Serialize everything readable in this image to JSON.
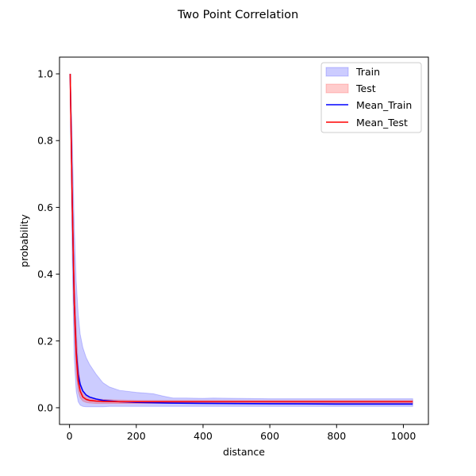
{
  "chart_data": {
    "type": "line",
    "title": "Two Point Correlation",
    "xlabel": "distance",
    "ylabel": "probability",
    "xlim": [
      -30,
      1075
    ],
    "ylim": [
      -0.05,
      1.05
    ],
    "xticks": [
      0,
      200,
      400,
      600,
      800,
      1000
    ],
    "yticks": [
      0.0,
      0.2,
      0.4,
      0.6,
      0.8,
      1.0
    ],
    "xtick_labels": [
      "0",
      "200",
      "400",
      "600",
      "800",
      "1000"
    ],
    "ytick_labels": [
      "0.0",
      "0.2",
      "0.4",
      "0.6",
      "0.8",
      "1.0"
    ],
    "grid": false,
    "legend_position": "top-right",
    "bands": [
      {
        "name": "Train",
        "color": "#0000ff",
        "alpha": 0.2,
        "x": [
          2,
          8,
          14,
          20,
          26,
          32,
          40,
          50,
          60,
          80,
          100,
          120,
          150,
          200,
          250,
          280,
          310,
          350,
          400,
          430,
          500,
          600,
          700,
          800,
          900,
          1000,
          1028
        ],
        "upper": [
          1.0,
          0.82,
          0.55,
          0.38,
          0.28,
          0.22,
          0.18,
          0.15,
          0.13,
          0.1,
          0.075,
          0.062,
          0.052,
          0.046,
          0.042,
          0.035,
          0.029,
          0.029,
          0.028,
          0.029,
          0.028,
          0.027,
          0.027,
          0.027,
          0.027,
          0.027,
          0.027
        ],
        "lower": [
          1.0,
          0.45,
          0.15,
          0.05,
          0.018,
          0.008,
          0.004,
          0.003,
          0.003,
          0.003,
          0.003,
          0.004,
          0.004,
          0.004,
          0.004,
          0.004,
          0.004,
          0.004,
          0.004,
          0.004,
          0.004,
          0.004,
          0.004,
          0.004,
          0.004,
          0.004,
          0.004
        ]
      },
      {
        "name": "Test",
        "color": "#ff0000",
        "alpha": 0.2,
        "x": [
          2,
          8,
          14,
          20,
          26,
          32,
          40,
          50,
          60,
          80,
          100,
          150,
          200,
          300,
          400,
          600,
          800,
          1000,
          1028
        ],
        "upper": [
          1.0,
          0.72,
          0.42,
          0.24,
          0.13,
          0.075,
          0.05,
          0.038,
          0.032,
          0.027,
          0.025,
          0.023,
          0.022,
          0.022,
          0.022,
          0.022,
          0.022,
          0.022,
          0.022
        ],
        "lower": [
          1.0,
          0.55,
          0.25,
          0.1,
          0.05,
          0.03,
          0.02,
          0.016,
          0.014,
          0.013,
          0.013,
          0.013,
          0.013,
          0.013,
          0.013,
          0.013,
          0.013,
          0.013,
          0.013
        ]
      }
    ],
    "series": [
      {
        "name": "Mean_Train",
        "color": "#0000ff",
        "x": [
          2,
          8,
          14,
          20,
          26,
          32,
          40,
          50,
          60,
          80,
          100,
          150,
          200,
          300,
          400,
          600,
          800,
          1000,
          1028
        ],
        "values": [
          1.0,
          0.62,
          0.32,
          0.17,
          0.1,
          0.07,
          0.05,
          0.038,
          0.032,
          0.026,
          0.022,
          0.018,
          0.016,
          0.014,
          0.013,
          0.012,
          0.011,
          0.011,
          0.011
        ]
      },
      {
        "name": "Mean_Test",
        "color": "#ff0000",
        "x": [
          2,
          8,
          14,
          20,
          26,
          32,
          40,
          50,
          60,
          80,
          100,
          150,
          200,
          300,
          400,
          600,
          800,
          1000,
          1028
        ],
        "values": [
          1.0,
          0.62,
          0.32,
          0.16,
          0.08,
          0.05,
          0.032,
          0.025,
          0.022,
          0.02,
          0.019,
          0.018,
          0.018,
          0.018,
          0.018,
          0.018,
          0.018,
          0.018,
          0.018
        ]
      }
    ],
    "legend": [
      "Train",
      "Test",
      "Mean_Train",
      "Mean_Test"
    ]
  }
}
